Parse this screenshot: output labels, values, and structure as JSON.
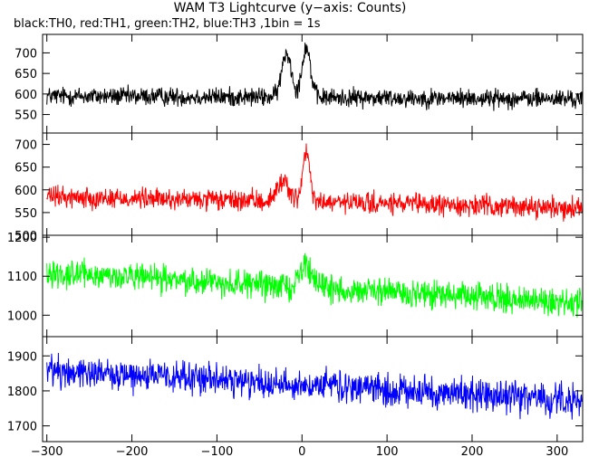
{
  "chart_data": {
    "type": "line",
    "title": "WAM T3 Lightcurve (y−axis: Counts)",
    "subtitle": "black:TH0, red:TH1, green:TH2, blue:TH3 ,1bin = 1s",
    "x_range": [
      -305,
      330
    ],
    "x_ticks": [
      -300,
      -200,
      -100,
      0,
      100,
      200,
      300
    ],
    "x_tick_labels": [
      "−300",
      "−200",
      "−100",
      "0",
      "100",
      "200",
      "300"
    ],
    "panels": [
      {
        "name": "TH0",
        "color": "#000000",
        "ylim": [
          505,
          745
        ],
        "y_ticks": [
          550,
          600,
          650,
          700
        ],
        "baseline": [
          {
            "x": -300,
            "y": 595
          },
          {
            "x": 330,
            "y": 588
          }
        ],
        "noise": 20,
        "features": [
          {
            "x": -18,
            "y": 700,
            "width": 8
          },
          {
            "x": 5,
            "y": 715,
            "width": 7
          }
        ]
      },
      {
        "name": "TH1",
        "color": "#ff0000",
        "ylim": [
          500,
          725
        ],
        "y_ticks": [
          500,
          550,
          600,
          650,
          700
        ],
        "baseline": [
          {
            "x": -300,
            "y": 585
          },
          {
            "x": 330,
            "y": 560
          }
        ],
        "noise": 20,
        "features": [
          {
            "x": -22,
            "y": 620,
            "width": 10
          },
          {
            "x": 5,
            "y": 680,
            "width": 6
          }
        ]
      },
      {
        "name": "TH2",
        "color": "#00ff00",
        "ylim": [
          945,
          1205
        ],
        "y_ticks": [
          1000,
          1100,
          1200
        ],
        "baseline": [
          {
            "x": -300,
            "y": 1110
          },
          {
            "x": 330,
            "y": 1030
          }
        ],
        "noise": 30,
        "features": [
          {
            "x": 5,
            "y": 1130,
            "width": 10
          }
        ]
      },
      {
        "name": "TH3",
        "color": "#0000ff",
        "ylim": [
          1655,
          1955
        ],
        "y_ticks": [
          1700,
          1800,
          1900
        ],
        "baseline": [
          {
            "x": -300,
            "y": 1860
          },
          {
            "x": 330,
            "y": 1770
          }
        ],
        "noise": 40,
        "features": []
      }
    ]
  }
}
